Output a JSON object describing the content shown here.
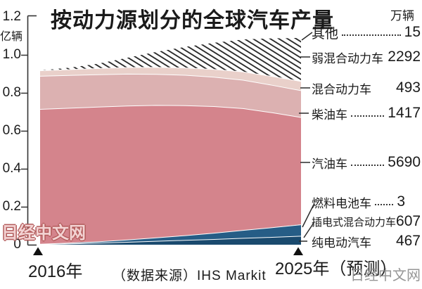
{
  "title": "按动力源划分的全球汽车产量",
  "right_unit": "万辆",
  "y_axis": {
    "unit": "亿辆",
    "ticks": [
      "1.2",
      "1.0",
      "0.8",
      "0.6",
      "0.4",
      "0.2",
      "0"
    ]
  },
  "x_axis": {
    "start": "2016年",
    "end": "2025年（预测）"
  },
  "source": "（数据来源）IHS Markit",
  "watermark_left": "日经中文网",
  "watermark_right": "日经中文网",
  "legend": {
    "rows": [
      {
        "label": "其他",
        "value": "15",
        "dots": true
      },
      {
        "label": "弱混合动力车",
        "value": "2292",
        "dots": false
      },
      {
        "label": "混合动力车",
        "value": "493",
        "dots": false
      },
      {
        "label": "柴油车",
        "value": "1417",
        "dots": true
      },
      {
        "label": "汽油车",
        "value": "5690",
        "dots": true
      },
      {
        "label": "燃料电池车",
        "value": "3",
        "dots": true
      },
      {
        "label": "插电式混合动力车",
        "value": "607",
        "dots": false
      },
      {
        "label": "纯电动汽车",
        "value": "467",
        "dots": false
      }
    ]
  },
  "chart_data": {
    "type": "area",
    "stacked": true,
    "title": "按动力源划分的全球汽车产量",
    "xlabel": "",
    "ylabel": "亿辆",
    "right_value_unit": "万辆",
    "ylim": [
      0,
      1.2
    ],
    "x": [
      2016,
      2017,
      2018,
      2019,
      2020,
      2021,
      2022,
      2023,
      2024,
      2025
    ],
    "x_start_label": "2016年",
    "x_end_label": "2025年（预测）",
    "source": "（数据来源）IHS Markit",
    "legend_position": "right",
    "grid": false,
    "series": [
      {
        "id": "ev",
        "name": "纯电动汽车",
        "value_2025_wan": 467,
        "color": "#1a4a6e",
        "values": [
          0.003,
          0.006,
          0.01,
          0.015,
          0.02,
          0.025,
          0.03,
          0.036,
          0.041,
          0.047
        ]
      },
      {
        "id": "phev",
        "name": "插电式混合动力车",
        "value_2025_wan": 607,
        "color": "#265d86",
        "values": [
          0.002,
          0.004,
          0.007,
          0.012,
          0.018,
          0.025,
          0.033,
          0.042,
          0.051,
          0.061
        ]
      },
      {
        "id": "fcv",
        "name": "燃料电池车",
        "value_2025_wan": 3,
        "color": "#265d86",
        "top_edge": false,
        "values": [
          0,
          0,
          0,
          0,
          0,
          0,
          0,
          0.0001,
          0.0002,
          0.0003
        ]
      },
      {
        "id": "gasoline",
        "name": "汽油车",
        "value_2025_wan": 5690,
        "color": "#d4848c",
        "values": [
          0.715,
          0.716,
          0.715,
          0.711,
          0.703,
          0.69,
          0.672,
          0.646,
          0.61,
          0.569
        ]
      },
      {
        "id": "diesel",
        "name": "柴油车",
        "value_2025_wan": 1417,
        "color": "#dcb1b1",
        "values": [
          0.176,
          0.174,
          0.172,
          0.169,
          0.165,
          0.161,
          0.156,
          0.151,
          0.146,
          0.142
        ]
      },
      {
        "id": "hybrid",
        "name": "混合动力车",
        "value_2025_wan": 493,
        "color": "#e9d0ca",
        "values": [
          0.029,
          0.031,
          0.033,
          0.035,
          0.037,
          0.039,
          0.041,
          0.044,
          0.047,
          0.049
        ]
      },
      {
        "id": "mild-hybrid",
        "name": "弱混合动力车",
        "value_2025_wan": 2292,
        "pattern": "hatch",
        "hatch_color": "#222222",
        "top_edge": false,
        "values": [
          0.0,
          0.008,
          0.024,
          0.05,
          0.08,
          0.11,
          0.14,
          0.17,
          0.2,
          0.229
        ]
      },
      {
        "id": "other",
        "name": "其他",
        "value_2025_wan": 15,
        "color": "#ffffff",
        "top_edge": false,
        "values": [
          0.004,
          0.004,
          0.003,
          0.003,
          0.003,
          0.003,
          0.002,
          0.002,
          0.002,
          0.0015
        ]
      }
    ]
  }
}
